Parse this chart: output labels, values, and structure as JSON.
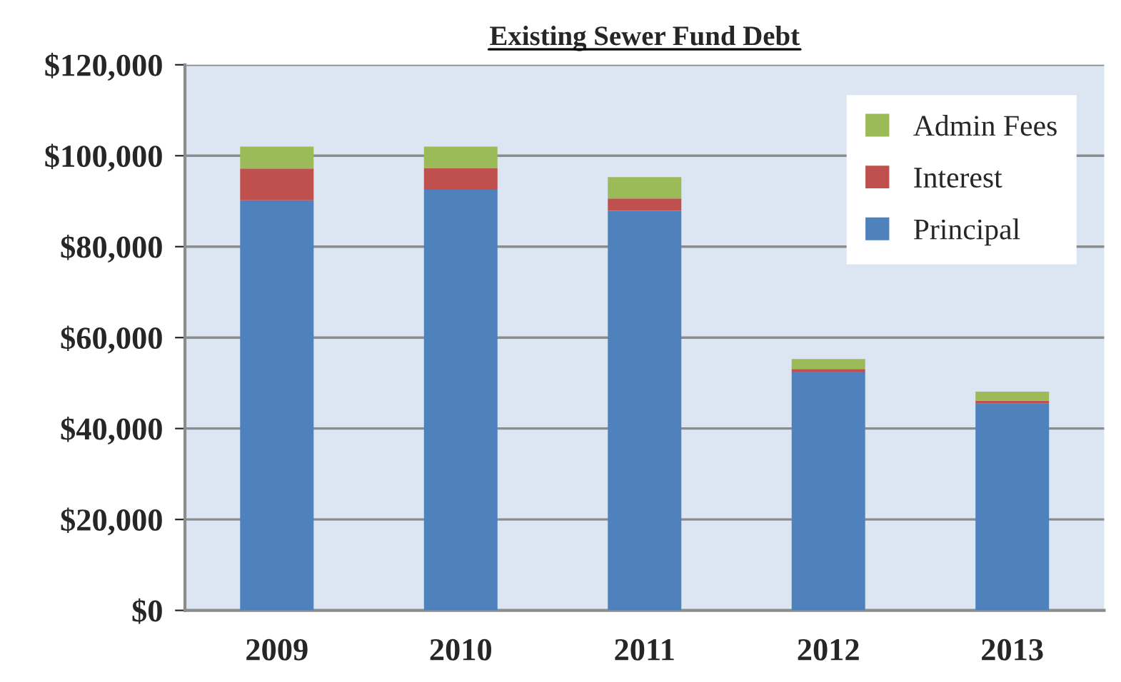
{
  "chart_data": {
    "type": "bar",
    "title": "Existing Sewer Fund Debt",
    "stacked": true,
    "categories": [
      "2009",
      "2010",
      "2011",
      "2012",
      "2013"
    ],
    "series": [
      {
        "name": "Principal",
        "color": "#4f81bd",
        "values": [
          90200,
          92500,
          87900,
          52500,
          45500
        ]
      },
      {
        "name": "Interest",
        "color": "#c0504d",
        "values": [
          7000,
          4800,
          2700,
          600,
          600
        ]
      },
      {
        "name": "Admin Fees",
        "color": "#9bbb59",
        "values": [
          4800,
          4700,
          4700,
          2200,
          2000
        ]
      }
    ],
    "ylim": [
      0,
      120000
    ],
    "yticks": [
      {
        "value": 0,
        "label": "$0"
      },
      {
        "value": 20000,
        "label": "$20,000"
      },
      {
        "value": 40000,
        "label": "$40,000"
      },
      {
        "value": 60000,
        "label": "$60,000"
      },
      {
        "value": 80000,
        "label": "$80,000"
      },
      {
        "value": 100000,
        "label": "$100,000"
      },
      {
        "value": 120000,
        "label": "$120,000"
      }
    ],
    "grid": "y",
    "legend": "top right"
  }
}
